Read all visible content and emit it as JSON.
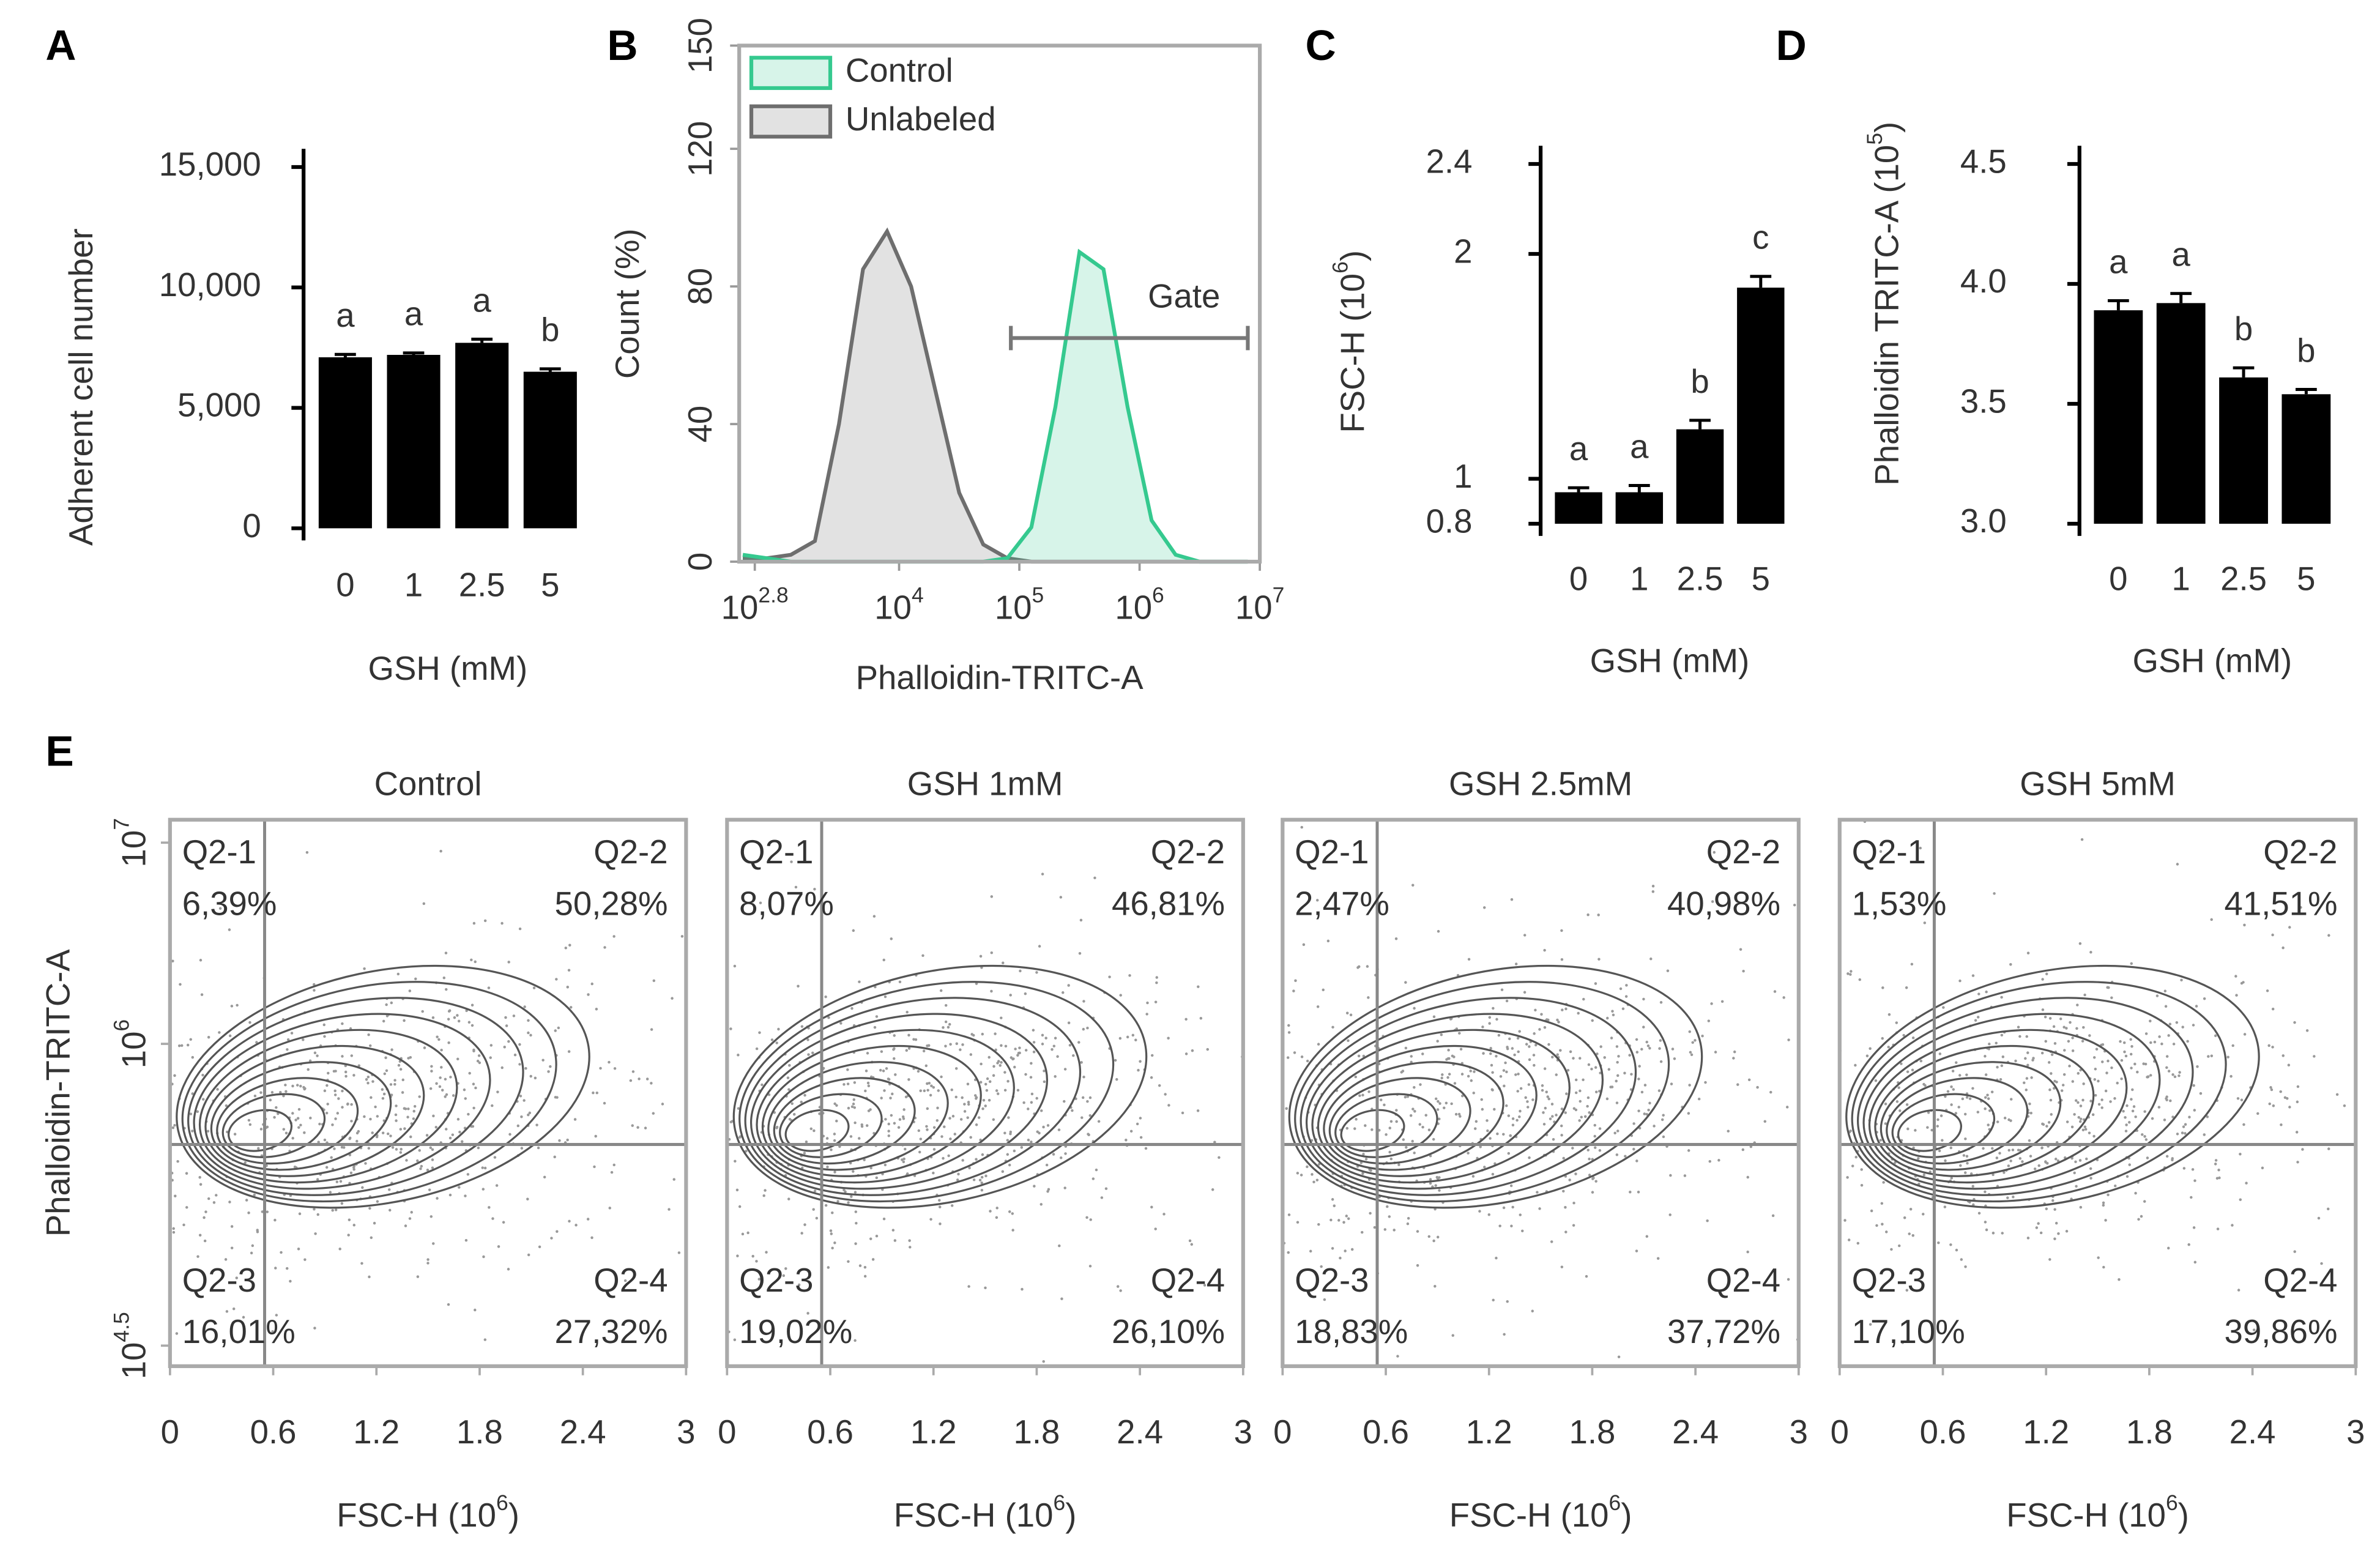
{
  "chart_data": [
    {
      "type": "bar",
      "panel": "A",
      "categories": [
        "0",
        "1",
        "2.5",
        "5"
      ],
      "values": [
        7100,
        7200,
        7700,
        6500
      ],
      "errors": [
        120,
        80,
        150,
        120
      ],
      "letters": [
        "a",
        "a",
        "a",
        "b"
      ],
      "color": "#000000",
      "ylim": [
        0,
        15000
      ],
      "yticks": [
        0,
        {
          "value": 5000,
          "label": "5,000"
        },
        {
          "value": 10000,
          "label": "10,000"
        },
        {
          "value": 15000,
          "label": "15,000"
        }
      ],
      "ylabel": "Adherent cell number",
      "xlabel": "GSH (mM)"
    },
    {
      "type": "line",
      "panel": "B",
      "area": true,
      "xscale": "log",
      "x": [
        501,
        794,
        1259,
        1995,
        3162,
        5012,
        7943,
        12589,
        19953,
        31623,
        50119,
        79433,
        125893,
        199526,
        316228,
        501187,
        794328,
        1258925,
        1995262,
        3162278,
        5011872,
        7943282
      ],
      "series": [
        {
          "name": "Control",
          "color": "#35c98f",
          "values": [
            2,
            1,
            0,
            0,
            0,
            0,
            0,
            0,
            0,
            0,
            0,
            1,
            10,
            45,
            90,
            85,
            45,
            12,
            2,
            0,
            0,
            0
          ]
        },
        {
          "name": "Unlabeled",
          "color": "#6e6e6e",
          "values": [
            1,
            1,
            2,
            6,
            40,
            85,
            96,
            80,
            50,
            20,
            5,
            1,
            0,
            0,
            0,
            0,
            0,
            0,
            0,
            0,
            0,
            0
          ]
        }
      ],
      "xlim": [
        468,
        10000000
      ],
      "xticks": [
        {
          "value": 631,
          "label": "10",
          "sup": "2.8"
        },
        {
          "value": 10000,
          "label": "10",
          "sup": "4"
        },
        {
          "value": 100000,
          "label": "10",
          "sup": "5"
        },
        {
          "value": 1000000,
          "label": "10",
          "sup": "6"
        },
        {
          "value": 10000000,
          "label": "10",
          "sup": "7"
        }
      ],
      "ylim": [
        0,
        150
      ],
      "yticks": [
        0,
        40,
        80,
        120,
        150
      ],
      "ylabel": "Count  (%)",
      "xlabel": "Phalloidin-TRITC-A",
      "legend": "upper left",
      "gate": {
        "label": "Gate",
        "range": [
          85000,
          7943282
        ],
        "y": 65
      }
    },
    {
      "type": "bar",
      "panel": "C",
      "categories": [
        "0",
        "1",
        "2.5",
        "5"
      ],
      "values": [
        0.94,
        0.94,
        1.22,
        1.85
      ],
      "errors": [
        0.02,
        0.03,
        0.04,
        0.05
      ],
      "letters": [
        "a",
        "a",
        "b",
        "c"
      ],
      "color": "#000000",
      "ylim": [
        0.8,
        2.4
      ],
      "yticks": [
        0.8,
        1,
        2,
        2.4
      ],
      "ylabel": {
        "text": "FSC-H (10",
        "sup": "6",
        "tail": ")"
      },
      "xlabel": "GSH (mM)"
    },
    {
      "type": "bar",
      "panel": "D",
      "categories": [
        "0",
        "1",
        "2.5",
        "5"
      ],
      "values": [
        3.89,
        3.92,
        3.61,
        3.54
      ],
      "errors": [
        0.04,
        0.04,
        0.04,
        0.02
      ],
      "letters": [
        "a",
        "a",
        "b",
        "b"
      ],
      "color": "#000000",
      "ylim": [
        3,
        4.5
      ],
      "yticks": [
        {
          "value": 3,
          "label": "3.0"
        },
        3.5,
        {
          "value": 4,
          "label": "4.0"
        },
        4.5
      ],
      "ylabel": {
        "text": "Phalloidin TRITC-A (10",
        "sup": "5",
        "tail": ")"
      },
      "xlabel": "GSH (mM)"
    },
    {
      "type": "contour",
      "panel": "E",
      "title": "Control",
      "xlim": [
        0,
        3
      ],
      "xticks": [
        0,
        0.6,
        1.2,
        1.8,
        2.4,
        3
      ],
      "xlabel": {
        "text": "FSC-H (10",
        "sup": "6",
        "tail": ")"
      },
      "yscale": "log",
      "ylim": [
        25000,
        13000000
      ],
      "yticks": [
        {
          "value": 31623,
          "label": "10",
          "sup": "4.5"
        },
        {
          "value": 1000000,
          "label": "10",
          "sup": "6"
        },
        {
          "value": 10000000,
          "label": "10",
          "sup": "7"
        }
      ],
      "ylabel": "Phalloidin-TRITC-A",
      "gate": {
        "x": 0.55,
        "y": 316228
      },
      "quadrants": [
        {
          "name": "Q2-1",
          "value": 6.39,
          "label": "6,39%"
        },
        {
          "name": "Q2-2",
          "value": 50.28,
          "label": "50,28%"
        },
        {
          "name": "Q2-3",
          "value": 16.01,
          "label": "16,01%"
        },
        {
          "name": "Q2-4",
          "value": 27.32,
          "label": "27,32%"
        }
      ]
    },
    {
      "type": "contour",
      "title": "GSH 1mM",
      "xlim": [
        0,
        3
      ],
      "xticks": [
        0,
        0.6,
        1.2,
        1.8,
        2.4,
        3
      ],
      "xlabel": {
        "text": "FSC-H (10",
        "sup": "6",
        "tail": ")"
      },
      "yscale": "log",
      "ylim": [
        25000,
        13000000
      ],
      "gate": {
        "x": 0.55,
        "y": 316228
      },
      "quadrants": [
        {
          "name": "Q2-1",
          "value": 8.07,
          "label": "8,07%"
        },
        {
          "name": "Q2-2",
          "value": 46.81,
          "label": "46,81%"
        },
        {
          "name": "Q2-3",
          "value": 19.02,
          "label": "19,02%"
        },
        {
          "name": "Q2-4",
          "value": 26.1,
          "label": "26,10%"
        }
      ]
    },
    {
      "type": "contour",
      "title": "GSH 2.5mM",
      "xlim": [
        0,
        3
      ],
      "xticks": [
        0,
        0.6,
        1.2,
        1.8,
        2.4,
        3
      ],
      "xlabel": {
        "text": "FSC-H (10",
        "sup": "6",
        "tail": ")"
      },
      "yscale": "log",
      "ylim": [
        25000,
        13000000
      ],
      "gate": {
        "x": 0.55,
        "y": 316228
      },
      "quadrants": [
        {
          "name": "Q2-1",
          "value": 2.47,
          "label": "2,47%"
        },
        {
          "name": "Q2-2",
          "value": 40.98,
          "label": "40,98%"
        },
        {
          "name": "Q2-3",
          "value": 18.83,
          "label": "18,83%"
        },
        {
          "name": "Q2-4",
          "value": 37.72,
          "label": "37,72%"
        }
      ]
    },
    {
      "type": "contour",
      "title": "GSH 5mM",
      "xlim": [
        0,
        3
      ],
      "xticks": [
        0,
        0.6,
        1.2,
        1.8,
        2.4,
        3
      ],
      "xlabel": {
        "text": "FSC-H (10",
        "sup": "6",
        "tail": ")"
      },
      "yscale": "log",
      "ylim": [
        25000,
        13000000
      ],
      "gate": {
        "x": 0.55,
        "y": 316228
      },
      "quadrants": [
        {
          "name": "Q2-1",
          "value": 1.53,
          "label": "1,53%"
        },
        {
          "name": "Q2-2",
          "value": 41.51,
          "label": "41,51%"
        },
        {
          "name": "Q2-3",
          "value": 17.1,
          "label": "17,10%"
        },
        {
          "name": "Q2-4",
          "value": 39.86,
          "label": "39,86%"
        }
      ]
    }
  ]
}
